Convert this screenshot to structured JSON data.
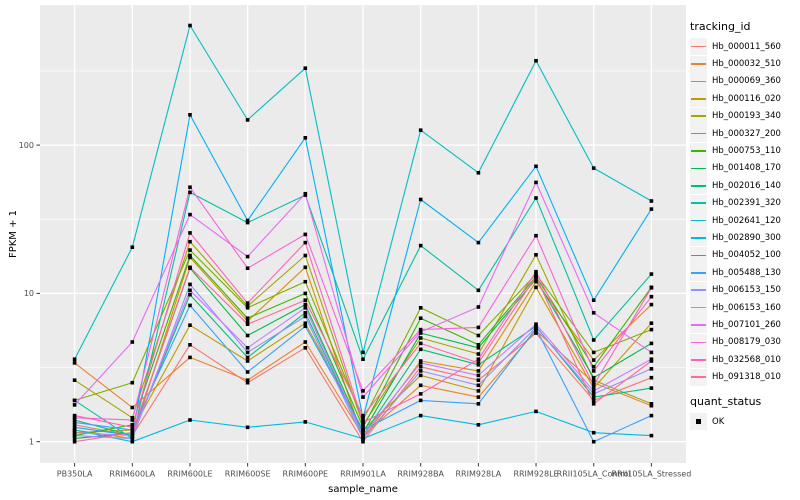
{
  "figure": {
    "bg": "#FFFFFF",
    "panel_bg": "#EBEBEB",
    "grid_color": "#FFFFFF",
    "tick_color": "#333333",
    "tick_label_color": "#4D4D4D",
    "axis_title_color": "#000000",
    "point_color": "#000000"
  },
  "legend": {
    "tracking_title": "tracking_id",
    "quant_title": "quant_status",
    "quant_items": [
      {
        "label": "OK",
        "shape": "black-square"
      }
    ]
  },
  "chart_data": {
    "type": "line",
    "title": "",
    "xlabel": "sample_name",
    "ylabel": "FPKM + 1",
    "y_scale": "log10",
    "y_ticks": [
      1,
      10,
      100
    ],
    "ylim": [
      0.7,
      830
    ],
    "grid": "major-and-minor-white-on-gray",
    "legend_position": "right",
    "point_shape": "square",
    "categories": [
      "PB350LA",
      "RRIM600LA",
      "RRIM600LE",
      "RRIM600SE",
      "RRIM600PE",
      "RRIM901LA",
      "RRIM928BA",
      "RRIM928LA",
      "RRIM928LE",
      "RRII105LA_Control",
      "RRII105LA_Stressed"
    ],
    "series": [
      {
        "name": "Hb_000011_560",
        "color": "#F8766D",
        "values": [
          1.3,
          1.1,
          4.5,
          2.5,
          4.3,
          1.0,
          3.2,
          2.6,
          5.4,
          1.9,
          2.7
        ]
      },
      {
        "name": "Hb_000032_510",
        "color": "#EA8331",
        "values": [
          3.4,
          1.7,
          3.7,
          2.6,
          4.7,
          1.1,
          2.4,
          2.0,
          5.6,
          2.5,
          1.75
        ]
      },
      {
        "name": "Hb_000069_360",
        "color": "#D89000",
        "values": [
          1.2,
          1.05,
          17.5,
          6.5,
          15.0,
          1.05,
          3.5,
          3.0,
          12.0,
          3.55,
          8.4
        ]
      },
      {
        "name": "Hb_000116_020",
        "color": "#C09B00",
        "values": [
          1.15,
          1.2,
          6.1,
          3.5,
          6.3,
          1.2,
          2.8,
          2.2,
          11.0,
          2.3,
          6.3
        ]
      },
      {
        "name": "Hb_000193_340",
        "color": "#A3A500",
        "values": [
          2.6,
          1.45,
          22.3,
          8.2,
          18.0,
          1.3,
          5.0,
          3.9,
          18.2,
          2.6,
          1.8
        ]
      },
      {
        "name": "Hb_000327_200",
        "color": "#7CAE00",
        "values": [
          1.9,
          2.5,
          19.6,
          8.0,
          12.0,
          1.4,
          8.0,
          5.2,
          13.5,
          4.0,
          5.7
        ]
      },
      {
        "name": "Hb_000753_110",
        "color": "#39B600",
        "values": [
          1.1,
          1.3,
          18.0,
          6.8,
          10.0,
          1.25,
          6.8,
          4.5,
          13.0,
          3.2,
          11.0
        ]
      },
      {
        "name": "Hb_001408_170",
        "color": "#00BB4E",
        "values": [
          1.05,
          1.15,
          14.8,
          5.2,
          8.4,
          1.15,
          5.4,
          4.3,
          12.5,
          2.7,
          4.6
        ]
      },
      {
        "name": "Hb_002016_140",
        "color": "#00BF7D",
        "values": [
          1.4,
          1.1,
          9.8,
          3.7,
          7.4,
          1.1,
          4.2,
          3.3,
          6.0,
          2.0,
          2.3
        ]
      },
      {
        "name": "Hb_002391_320",
        "color": "#00C1A3",
        "values": [
          1.9,
          1.05,
          48,
          30,
          46,
          3.6,
          21,
          10.5,
          44,
          4.85,
          13.5
        ]
      },
      {
        "name": "Hb_002641_120",
        "color": "#00BFC4",
        "values": [
          3.6,
          20.5,
          640,
          148,
          330,
          4.0,
          126,
          65,
          370,
          70,
          42
        ]
      },
      {
        "name": "Hb_002890_300",
        "color": "#00BAE0",
        "values": [
          1.2,
          1.0,
          1.4,
          1.25,
          1.36,
          1.05,
          1.5,
          1.3,
          1.6,
          1.15,
          1.1
        ]
      },
      {
        "name": "Hb_004052_100",
        "color": "#00B0F6",
        "values": [
          1.25,
          1.1,
          160,
          31,
          112,
          1.45,
          43,
          22,
          72,
          9.0,
          37
        ]
      },
      {
        "name": "Hb_005488_130",
        "color": "#35A2FF",
        "values": [
          1.35,
          1.2,
          8.3,
          2.95,
          6.0,
          1.2,
          1.9,
          1.8,
          5.8,
          1.0,
          1.5
        ]
      },
      {
        "name": "Hb_006153_150",
        "color": "#9590FF",
        "values": [
          1.1,
          1.05,
          11.5,
          4.0,
          7.0,
          1.05,
          3.0,
          2.4,
          5.9,
          2.1,
          3.1
        ]
      },
      {
        "name": "Hb_006153_160",
        "color": "#C77CFF",
        "values": [
          1.15,
          1.1,
          10.5,
          4.3,
          8.0,
          1.1,
          3.4,
          2.8,
          6.2,
          2.2,
          3.6
        ]
      },
      {
        "name": "Hb_007101_260",
        "color": "#E76BF3",
        "values": [
          1.77,
          4.7,
          34,
          17.7,
          47,
          2.0,
          5.5,
          8.1,
          56,
          7.4,
          4.0
        ]
      },
      {
        "name": "Hb_008179_030",
        "color": "#FA62DB",
        "values": [
          1.45,
          1.4,
          52,
          14.8,
          25,
          2.2,
          5.7,
          5.9,
          24.5,
          3.0,
          9.5
        ]
      },
      {
        "name": "Hb_032568_010",
        "color": "#FF62BC",
        "values": [
          1.5,
          1.25,
          25.6,
          8.6,
          22,
          1.35,
          2.1,
          3.6,
          14.0,
          2.4,
          10.9
        ]
      },
      {
        "name": "Hb_091318_010",
        "color": "#FF6A98",
        "values": [
          1.0,
          1.15,
          15.0,
          6.2,
          9.0,
          1.5,
          4.6,
          3.4,
          13.0,
          1.8,
          3.5
        ]
      }
    ]
  }
}
